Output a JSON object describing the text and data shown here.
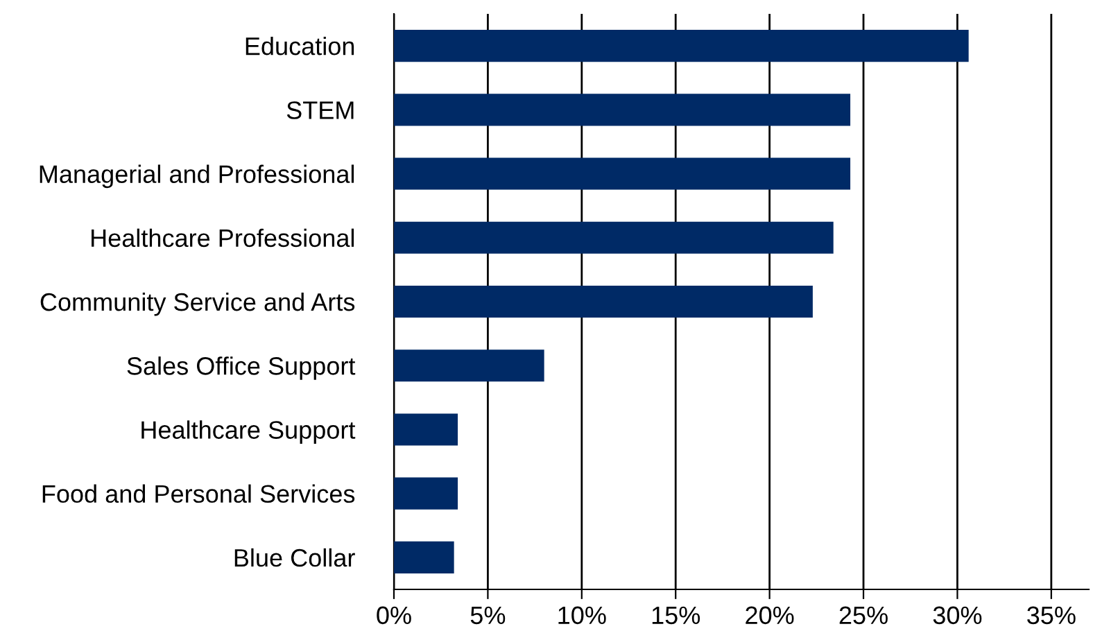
{
  "chart_data": {
    "type": "bar",
    "orientation": "horizontal",
    "categories": [
      "Education",
      "STEM",
      "Managerial and Professional",
      "Healthcare Professional",
      "Community Service and Arts",
      "Sales Office Support",
      "Healthcare Support",
      "Food and Personal Services",
      "Blue Collar"
    ],
    "values": [
      30.6,
      24.3,
      24.3,
      23.4,
      22.3,
      8.0,
      3.4,
      3.4,
      3.2
    ],
    "color": "#002a66",
    "xlim": [
      0,
      37
    ],
    "xticks": [
      {
        "value": 0,
        "label": "0%"
      },
      {
        "value": 5,
        "label": "5%"
      },
      {
        "value": 10,
        "label": "10%"
      },
      {
        "value": 15,
        "label": "15%"
      },
      {
        "value": 20,
        "label": "20%"
      },
      {
        "value": 25,
        "label": "25%"
      },
      {
        "value": 30,
        "label": "30%"
      },
      {
        "value": 35,
        "label": "35%"
      }
    ],
    "grid": "x"
  }
}
